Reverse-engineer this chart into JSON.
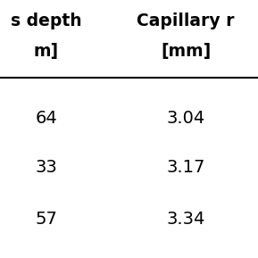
{
  "col1_header_line1": "s depth",
  "col1_header_line2": "m]",
  "col2_header_line1": "Capillary r",
  "col2_header_line2": "[mm]",
  "col1_values": [
    "64",
    "33",
    "57"
  ],
  "col2_values": [
    "3.04",
    "3.17",
    "3.34"
  ],
  "background_color": "#ffffff",
  "text_color": "#000000",
  "header_fontsize": 13.5,
  "data_fontsize": 14,
  "font_weight_header": "bold",
  "font_weight_data": "normal"
}
